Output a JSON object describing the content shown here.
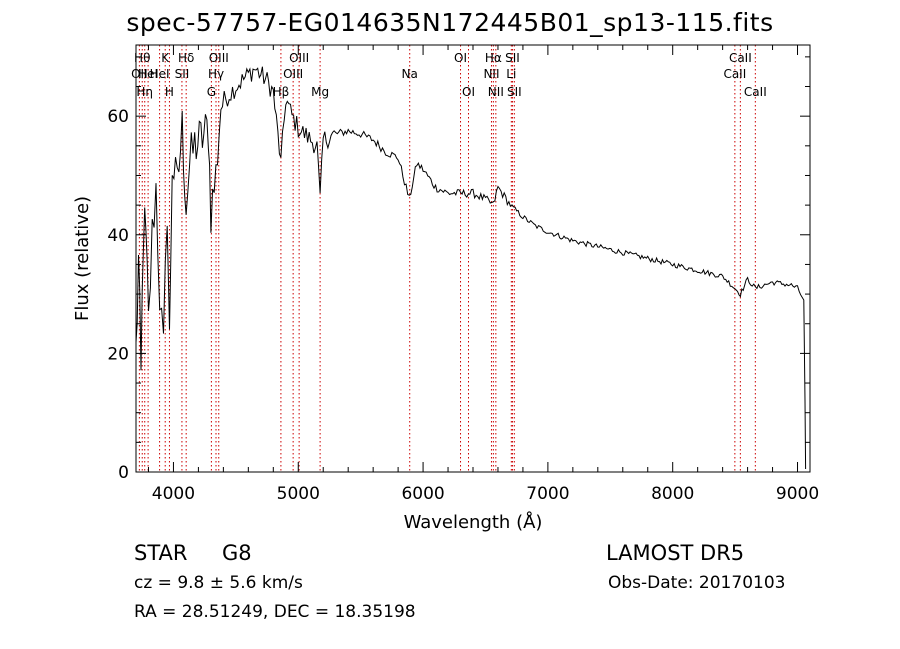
{
  "title": "spec-57757-EG014635N172445B01_sp13-115.fits",
  "info": {
    "object_class": "STAR",
    "subclass": "G8",
    "survey": "LAMOST DR5",
    "cz": "cz = 9.8 ± 5.6 km/s",
    "obs_date": "Obs-Date: 20170103",
    "coords": "RA =  28.51249, DEC =  18.35198"
  },
  "colors": {
    "line": "#000000",
    "marker": "#cc0000",
    "axes": "#000000",
    "background": "#ffffff"
  },
  "chart_data": {
    "type": "line",
    "xlabel": "Wavelength (Å)",
    "ylabel": "Flux (relative)",
    "xlim": [
      3700,
      9100
    ],
    "ylim": [
      0,
      72
    ],
    "xticks": [
      4000,
      5000,
      6000,
      7000,
      8000,
      9000
    ],
    "yticks": [
      0,
      20,
      40,
      60
    ],
    "grid": false,
    "series": [
      {
        "x": [
          3700,
          3720,
          3740,
          3760,
          3780,
          3800,
          3830,
          3860,
          3890,
          3920,
          3950,
          3968,
          3990,
          4030,
          4070,
          4101,
          4130,
          4170,
          4220,
          4280,
          4300,
          4340,
          4380,
          4420,
          4460,
          4500,
          4550,
          4600,
          4650,
          4700,
          4750,
          4800,
          4861,
          4900,
          4950,
          5000,
          5050,
          5100,
          5150,
          5175,
          5200,
          5300,
          5400,
          5500,
          5600,
          5700,
          5800,
          5890,
          5950,
          6000,
          6100,
          6200,
          6300,
          6400,
          6500,
          6563,
          6600,
          6700,
          6800,
          6900,
          7000,
          7200,
          7400,
          7600,
          7800,
          8000,
          8200,
          8400,
          8498,
          8542,
          8600,
          8662,
          8800,
          8950,
          9000,
          9050
        ],
        "y": [
          20,
          35,
          15,
          42,
          38,
          25,
          40,
          48,
          30,
          20,
          45,
          22,
          52,
          48,
          58,
          45,
          52,
          55,
          56,
          58,
          44,
          50,
          62,
          63,
          64,
          65,
          66,
          67,
          68,
          67,
          66,
          64,
          52,
          63,
          60,
          58,
          57,
          56,
          55,
          46,
          56,
          57,
          57.5,
          57,
          56,
          54,
          53,
          46,
          52,
          51,
          48,
          47,
          47,
          47,
          46,
          45,
          48,
          45,
          43,
          41.5,
          40.5,
          39,
          38,
          37,
          36,
          35,
          34,
          33,
          31,
          30,
          32.5,
          31,
          32,
          31.5,
          31,
          29
        ]
      }
    ],
    "lines": [
      {
        "x": 3727,
        "label": "OII",
        "row": 2
      },
      {
        "x": 3750,
        "label": "Hθ",
        "row": 1
      },
      {
        "x": 3770,
        "label": "Hη",
        "row": 3
      },
      {
        "x": 3797,
        "label": "HeI",
        "row": 2
      },
      {
        "x": 3889,
        "label": "HeI",
        "row": 2
      },
      {
        "x": 3934,
        "label": "K",
        "row": 1
      },
      {
        "x": 3968,
        "label": "H",
        "row": 3
      },
      {
        "x": 4068,
        "label": "SII",
        "row": 2
      },
      {
        "x": 4102,
        "label": "Hδ",
        "row": 1
      },
      {
        "x": 4304,
        "label": "G",
        "row": 3
      },
      {
        "x": 4341,
        "label": "Hγ",
        "row": 2
      },
      {
        "x": 4363,
        "label": "OIII",
        "row": 1
      },
      {
        "x": 4861,
        "label": "Hβ",
        "row": 3
      },
      {
        "x": 4959,
        "label": "OIII",
        "row": 2
      },
      {
        "x": 5007,
        "label": "OIII",
        "row": 1
      },
      {
        "x": 5175,
        "label": "Mg",
        "row": 3
      },
      {
        "x": 5893,
        "label": "Na",
        "row": 2
      },
      {
        "x": 6300,
        "label": "OI",
        "row": 1
      },
      {
        "x": 6364,
        "label": "OI",
        "row": 3
      },
      {
        "x": 6548,
        "label": "NII",
        "row": 2
      },
      {
        "x": 6563,
        "label": "Hα",
        "row": 1
      },
      {
        "x": 6583,
        "label": "NII",
        "row": 3
      },
      {
        "x": 6707,
        "label": "Li",
        "row": 2
      },
      {
        "x": 6716,
        "label": "SII",
        "row": 1
      },
      {
        "x": 6731,
        "label": "SII",
        "row": 3
      },
      {
        "x": 8498,
        "label": "CaII",
        "row": 2
      },
      {
        "x": 8542,
        "label": "CaII",
        "row": 1
      },
      {
        "x": 8662,
        "label": "CaII",
        "row": 3
      }
    ]
  }
}
